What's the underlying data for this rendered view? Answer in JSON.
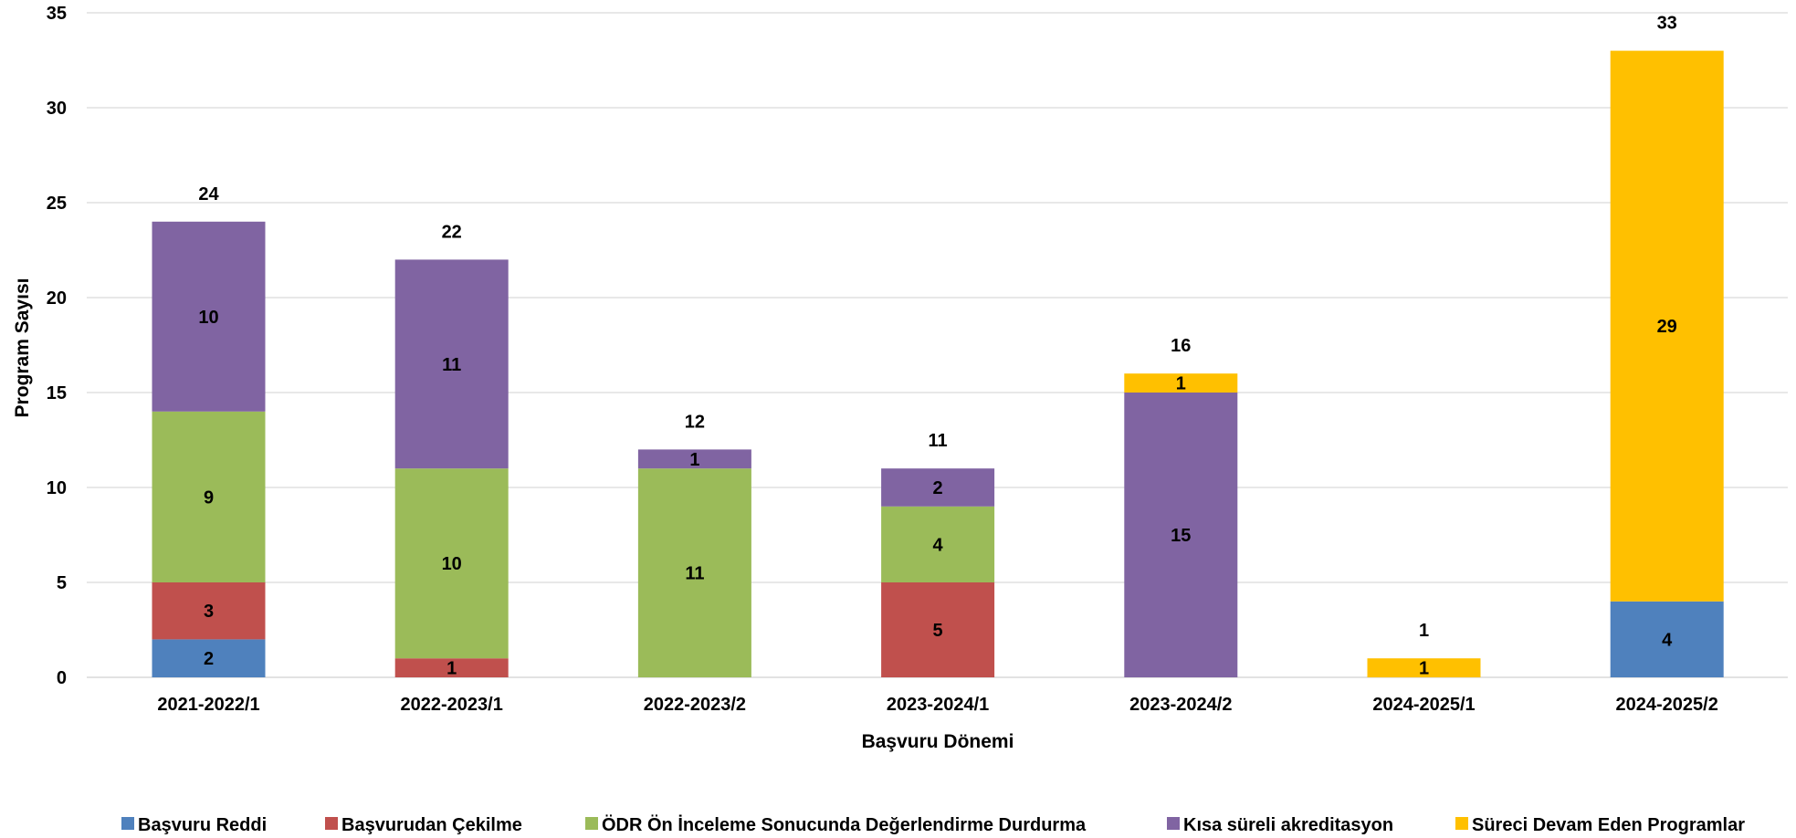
{
  "chart_data": {
    "type": "bar",
    "stacked": true,
    "xlabel": "Başvuru Dönemi",
    "ylabel": "Program Sayısı",
    "ylim": [
      0,
      35
    ],
    "yticks": [
      0,
      5,
      10,
      15,
      20,
      25,
      30,
      35
    ],
    "grid": true,
    "legend_position": "bottom",
    "categories": [
      "2021-2022/1",
      "2022-2023/1",
      "2022-2023/2",
      "2023-2024/1",
      "2023-2024/2",
      "2024-2025/1",
      "2024-2025/2"
    ],
    "totals": [
      24,
      22,
      12,
      11,
      16,
      1,
      33
    ],
    "series": [
      {
        "name": "Başvuru Reddi",
        "color": "#4f81bd",
        "values": [
          2,
          0,
          0,
          0,
          0,
          0,
          4
        ]
      },
      {
        "name": "Başvurudan Çekilme",
        "color": "#c0504d",
        "values": [
          3,
          1,
          0,
          5,
          0,
          0,
          0
        ]
      },
      {
        "name": "ÖDR Ön İnceleme Sonucunda Değerlendirme Durdurma",
        "color": "#9bbb59",
        "values": [
          9,
          10,
          11,
          4,
          0,
          0,
          0
        ]
      },
      {
        "name": "Kısa süreli akreditasyon",
        "color": "#8064a2",
        "values": [
          10,
          11,
          1,
          2,
          15,
          0,
          0
        ]
      },
      {
        "name": "Süreci Devam Eden Programlar",
        "color": "#ffc000",
        "values": [
          0,
          0,
          0,
          0,
          1,
          1,
          29
        ]
      }
    ]
  }
}
